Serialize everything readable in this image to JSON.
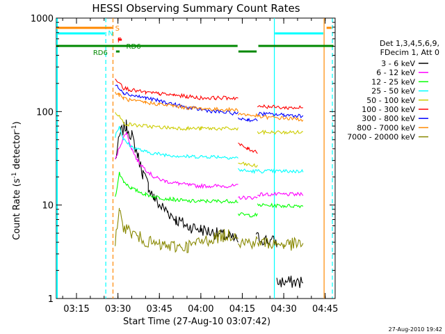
{
  "chart_data": {
    "type": "line",
    "title": "HESSI Observing Summary Count Rates",
    "xlabel": "Start Time (27-Aug-10 03:07:42)",
    "ylabel_main": "Count Rate (s",
    "ylabel_sup": "-1",
    "ylabel_mid": " detector",
    "ylabel_end": ")",
    "y_scale": "log",
    "ylim": [
      1,
      1000
    ],
    "xlim_min": [
      7.7,
      108.6
    ],
    "y_ticks": [
      {
        "v": 1,
        "label": "1"
      },
      {
        "v": 10,
        "label": "10"
      },
      {
        "v": 100,
        "label": "100"
      },
      {
        "v": 1000,
        "label": "1000"
      }
    ],
    "x_ticks": [
      {
        "v": 15,
        "label": "03:15"
      },
      {
        "v": 30,
        "label": "03:30"
      },
      {
        "v": 45,
        "label": "03:45"
      },
      {
        "v": 60,
        "label": "04:00"
      },
      {
        "v": 75,
        "label": "04:15"
      },
      {
        "v": 90,
        "label": "04:30"
      },
      {
        "v": 105,
        "label": "04:45"
      }
    ],
    "legend_header": [
      "Det 1,3,4,5,6,9,",
      "FDecim 1, Att 0"
    ],
    "legend_placement": "right",
    "series": [
      {
        "name": "3 - 6 keV",
        "color": "#000000",
        "points": [
          [
            29.0,
            30
          ],
          [
            31.0,
            60
          ],
          [
            33.0,
            70
          ],
          [
            35.0,
            55
          ],
          [
            37.0,
            35
          ],
          [
            39.0,
            22
          ],
          [
            41.0,
            16
          ],
          [
            43.0,
            12
          ],
          [
            45.0,
            10
          ],
          [
            48.0,
            8.5
          ],
          [
            51.0,
            7
          ],
          [
            55.0,
            6
          ],
          [
            60.0,
            5.5
          ],
          [
            65.0,
            5
          ],
          [
            70.0,
            4.5
          ],
          [
            73.5,
            4.2
          ]
        ],
        "points2": [
          [
            80.0,
            4.5
          ],
          [
            84.0,
            4.2
          ],
          [
            87.5,
            4
          ]
        ],
        "points3": [
          [
            87.5,
            1.5
          ],
          [
            97.0,
            1.5
          ]
        ]
      },
      {
        "name": "6 - 12 keV",
        "color": "#ff00ff",
        "points": [
          [
            29.0,
            30
          ],
          [
            31.0,
            45
          ],
          [
            33.0,
            60
          ],
          [
            35.0,
            40
          ],
          [
            37.0,
            30
          ],
          [
            40.0,
            24
          ],
          [
            43.0,
            20
          ],
          [
            47.0,
            18
          ],
          [
            52.0,
            17
          ],
          [
            58.0,
            16
          ],
          [
            65.0,
            16
          ],
          [
            73.5,
            16
          ]
        ],
        "points2": [
          [
            73.5,
            12
          ],
          [
            77.0,
            12
          ],
          [
            80.5,
            12
          ]
        ],
        "points3": [
          [
            80.5,
            13
          ],
          [
            90.0,
            13
          ],
          [
            97.0,
            13
          ]
        ]
      },
      {
        "name": "12 - 25 keV",
        "color": "#00ff00",
        "points": [
          [
            29.0,
            12
          ],
          [
            30.5,
            22
          ],
          [
            32.0,
            18
          ],
          [
            35.0,
            15
          ],
          [
            40.0,
            13
          ],
          [
            45.0,
            12
          ],
          [
            50.0,
            11.5
          ],
          [
            55.0,
            11
          ],
          [
            60.0,
            11
          ],
          [
            65.0,
            11
          ],
          [
            73.5,
            11
          ]
        ],
        "points2": [
          [
            73.5,
            8
          ],
          [
            77.0,
            7.8
          ],
          [
            80.5,
            7.8
          ]
        ],
        "points3": [
          [
            80.5,
            10
          ],
          [
            90.0,
            9.8
          ],
          [
            97.0,
            9.8
          ]
        ]
      },
      {
        "name": "25 - 50 keV",
        "color": "#00ffff",
        "points": [
          [
            29.0,
            55
          ],
          [
            30.5,
            70
          ],
          [
            32.0,
            50
          ],
          [
            35.0,
            42
          ],
          [
            40.0,
            37
          ],
          [
            45.0,
            35
          ],
          [
            50.0,
            34
          ],
          [
            55.0,
            33
          ],
          [
            60.0,
            33
          ],
          [
            65.0,
            33
          ],
          [
            73.5,
            32
          ]
        ],
        "points2": [
          [
            73.5,
            24
          ],
          [
            77.0,
            23
          ],
          [
            80.5,
            23
          ]
        ],
        "points3": [
          [
            80.5,
            23
          ],
          [
            90.0,
            23
          ],
          [
            97.0,
            23
          ]
        ]
      },
      {
        "name": "50 - 100 keV",
        "color": "#cccc00",
        "points": [
          [
            29.0,
            100
          ],
          [
            30.5,
            90
          ],
          [
            32.0,
            75
          ],
          [
            35.0,
            72
          ],
          [
            40.0,
            70
          ],
          [
            45.0,
            68
          ],
          [
            50.0,
            67
          ],
          [
            55.0,
            66
          ],
          [
            60.0,
            66
          ],
          [
            65.0,
            66
          ],
          [
            73.5,
            65
          ]
        ],
        "points2": [
          [
            73.5,
            28
          ],
          [
            77.0,
            27
          ],
          [
            80.5,
            26
          ]
        ],
        "points3": [
          [
            80.5,
            60
          ],
          [
            90.0,
            60
          ],
          [
            97.0,
            60
          ]
        ]
      },
      {
        "name": "100 - 300 keV",
        "color": "#ff0000",
        "points": [
          [
            29.0,
            220
          ],
          [
            30.5,
            210
          ],
          [
            32.0,
            180
          ],
          [
            35.0,
            170
          ],
          [
            40.0,
            160
          ],
          [
            45.0,
            155
          ],
          [
            50.0,
            150
          ],
          [
            55.0,
            145
          ],
          [
            60.0,
            140
          ],
          [
            65.0,
            140
          ],
          [
            73.5,
            140
          ]
        ],
        "points2": [
          [
            73.5,
            45
          ],
          [
            77.0,
            40
          ],
          [
            80.5,
            37
          ]
        ],
        "points3": [
          [
            80.5,
            115
          ],
          [
            90.0,
            110
          ],
          [
            97.0,
            110
          ]
        ]
      },
      {
        "name": "300 - 800 keV",
        "color": "#0000ff",
        "points": [
          [
            29.0,
            190
          ],
          [
            30.5,
            180
          ],
          [
            32.0,
            160
          ],
          [
            35.0,
            150
          ],
          [
            40.0,
            140
          ],
          [
            45.0,
            130
          ],
          [
            50.0,
            120
          ],
          [
            55.0,
            110
          ],
          [
            60.0,
            105
          ],
          [
            65.0,
            100
          ],
          [
            73.5,
            95
          ]
        ],
        "points2": [
          [
            73.5,
            85
          ],
          [
            77.0,
            82
          ],
          [
            80.5,
            80
          ]
        ],
        "points3": [
          [
            80.5,
            95
          ],
          [
            90.0,
            92
          ],
          [
            97.0,
            90
          ]
        ]
      },
      {
        "name": "800 - 7000 keV",
        "color": "#ff8800",
        "points": [
          [
            29.0,
            160
          ],
          [
            30.5,
            150
          ],
          [
            32.0,
            140
          ],
          [
            35.0,
            130
          ],
          [
            40.0,
            125
          ],
          [
            45.0,
            120
          ],
          [
            50.0,
            115
          ],
          [
            55.0,
            110
          ],
          [
            60.0,
            108
          ],
          [
            65.0,
            106
          ],
          [
            73.5,
            104
          ]
        ],
        "points2": [
          [
            73.5,
            95
          ],
          [
            77.0,
            92
          ],
          [
            80.5,
            90
          ]
        ],
        "points3": [
          [
            80.5,
            88
          ],
          [
            90.0,
            85
          ],
          [
            97.0,
            82
          ]
        ]
      },
      {
        "name": "7000 - 20000 keV",
        "color": "#888800",
        "points": [
          [
            29.0,
            4
          ],
          [
            30.5,
            8
          ],
          [
            32.0,
            6
          ],
          [
            35.0,
            5
          ],
          [
            38.0,
            4.5
          ],
          [
            41.0,
            4
          ],
          [
            45.0,
            3.7
          ],
          [
            50.0,
            3.6
          ],
          [
            55.0,
            3.6
          ],
          [
            60.0,
            4
          ],
          [
            65.0,
            4.5
          ],
          [
            70.0,
            4.8
          ],
          [
            73.5,
            5
          ]
        ],
        "points2": [
          [
            73.5,
            4
          ],
          [
            77.0,
            4
          ],
          [
            80.5,
            4
          ]
        ],
        "points3": [
          [
            80.5,
            4
          ],
          [
            90.0,
            3.8
          ],
          [
            97.0,
            3.8
          ]
        ]
      }
    ],
    "flags": [
      {
        "label": "S",
        "color": "#ff8800"
      },
      {
        "label": "N",
        "color": "#00ffff"
      },
      {
        "label": "F",
        "color": "#ff0000"
      },
      {
        "label": "RD6",
        "color": "#008800"
      },
      {
        "label": "RD6",
        "color": "#008800"
      }
    ],
    "footer_date": "27-Aug-2010 19:42"
  }
}
